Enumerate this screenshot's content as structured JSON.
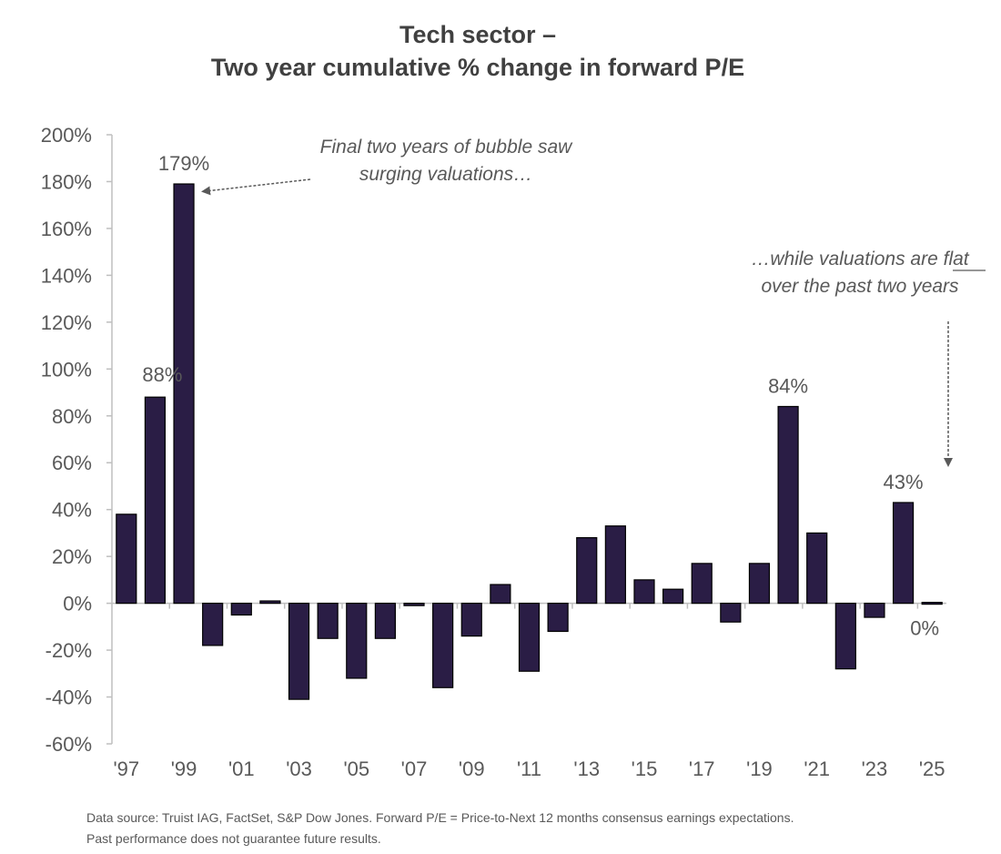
{
  "chart_data": {
    "type": "bar",
    "title": "Tech sector –",
    "subtitle": "Two year cumulative % change in forward P/E",
    "xlabel": "",
    "ylabel": "",
    "ylim": [
      -60,
      200
    ],
    "y_ticks": [
      200,
      180,
      160,
      140,
      120,
      100,
      80,
      60,
      40,
      20,
      0,
      -20,
      -40,
      -60
    ],
    "y_tick_format": "%",
    "grid": false,
    "legend": "none",
    "categories": [
      "1997",
      "1998",
      "1999",
      "2000",
      "2001",
      "2002",
      "2003",
      "2004",
      "2005",
      "2006",
      "2007",
      "2008",
      "2009",
      "2010",
      "2011",
      "2012",
      "2013",
      "2014",
      "2015",
      "2016",
      "2017",
      "2018",
      "2019",
      "2020",
      "2021",
      "2022",
      "2023",
      "2024",
      "2025"
    ],
    "x_tick_labels": [
      "'97",
      "'99",
      "'01",
      "'03",
      "'05",
      "'07",
      "'09",
      "'11",
      "'13",
      "'15",
      "'17",
      "'19",
      "'21",
      "'23",
      "'25"
    ],
    "values": [
      38,
      88,
      179,
      -18,
      -5,
      1,
      -41,
      -15,
      -32,
      -15,
      -1,
      -36,
      -14,
      8,
      -29,
      -12,
      28,
      33,
      10,
      6,
      17,
      -8,
      17,
      84,
      30,
      -28,
      -6,
      43,
      0
    ],
    "series": [
      {
        "name": "Two year cumulative % change in forward P/E",
        "color": "#2a1d45"
      }
    ],
    "data_labels": [
      {
        "category": "1998",
        "text": "88%"
      },
      {
        "category": "1999",
        "text": "179%"
      },
      {
        "category": "2020",
        "text": "84%"
      },
      {
        "category": "2024",
        "text": "43%"
      },
      {
        "category": "2025",
        "text": "0%"
      }
    ],
    "annotations": [
      {
        "lines": [
          "Final two years of bubble saw",
          "surging valuations…"
        ],
        "points_to": "1999"
      },
      {
        "lines": [
          "…while valuations are flat",
          "over the past two years"
        ],
        "underlined_word": "flat",
        "points_to": "2025"
      }
    ]
  },
  "footnote": {
    "line1": "Data source: Truist IAG, FactSet, S&P Dow Jones. Forward P/E = Price-to-Next 12 months consensus earnings expectations.",
    "line2": "Past performance does not guarantee future results."
  },
  "colors": {
    "bar": "#2a1d45",
    "bar_outline": "#000000",
    "axis": "#bfbfbf",
    "text": "#595959"
  }
}
